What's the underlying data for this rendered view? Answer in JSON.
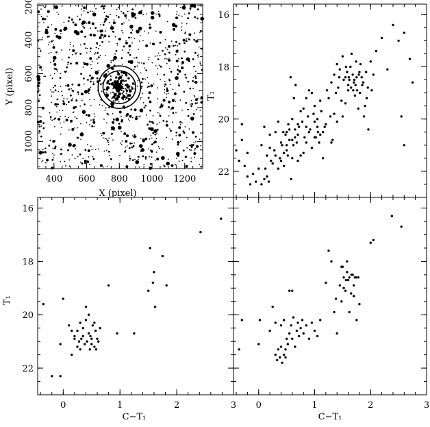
{
  "chart_data": [
    {
      "id": "finding-chart",
      "type": "scatter",
      "xlabel": "X (pixel)",
      "ylabel": "Y (pixel)",
      "xlim": [
        300,
        1310
      ],
      "ylim": [
        1160,
        190
      ],
      "x_ticks": [
        400,
        600,
        800,
        1000,
        1200
      ],
      "y_ticks": [
        200,
        400,
        600,
        800,
        1000
      ],
      "cluster_center": [
        800,
        680
      ],
      "circle_radii": [
        100,
        130
      ],
      "n_field_stars": 950,
      "n_cluster_stars": 140,
      "grid": false
    },
    {
      "id": "cmd-top-right",
      "type": "scatter",
      "xlabel": "",
      "ylabel": "T₁",
      "xlim": [
        -0.45,
        3.0
      ],
      "ylim": [
        23.0,
        15.6
      ],
      "x_ticks": [],
      "y_ticks": [
        16,
        18,
        20,
        22
      ],
      "points": [
        [
          -0.4,
          21.2
        ],
        [
          -0.35,
          21.6
        ],
        [
          -0.3,
          20.2
        ],
        [
          -0.2,
          22.2
        ],
        [
          -0.15,
          22.5
        ],
        [
          -0.1,
          22.1
        ],
        [
          -0.05,
          22.4
        ],
        [
          0.0,
          21.9
        ],
        [
          0.05,
          22.5
        ],
        [
          0.1,
          22.3
        ],
        [
          0.15,
          22.2
        ],
        [
          0.2,
          21.1
        ],
        [
          0.25,
          21.7
        ],
        [
          0.3,
          20.5
        ],
        [
          0.35,
          21.9
        ],
        [
          0.4,
          20.9
        ],
        [
          0.45,
          21.8
        ],
        [
          0.5,
          21.2
        ],
        [
          0.55,
          20.8
        ],
        [
          0.6,
          21.5
        ],
        [
          0.65,
          20.4
        ],
        [
          0.7,
          20.6
        ],
        [
          0.75,
          21.4
        ],
        [
          0.8,
          21.3
        ],
        [
          0.85,
          20.9
        ],
        [
          0.9,
          20.5
        ],
        [
          0.95,
          21.1
        ],
        [
          1.0,
          20.7
        ],
        [
          1.05,
          20.3
        ],
        [
          1.1,
          20.6
        ],
        [
          1.15,
          21.5
        ],
        [
          1.2,
          20.2
        ],
        [
          1.3,
          20.9
        ],
        [
          1.35,
          19.8
        ],
        [
          1.4,
          20.1
        ],
        [
          1.5,
          19.9
        ],
        [
          1.55,
          19.4
        ],
        [
          1.6,
          18.9
        ],
        [
          0.2,
          20.6
        ],
        [
          0.3,
          21.4
        ],
        [
          0.4,
          21.6
        ],
        [
          0.45,
          21.3
        ],
        [
          0.5,
          21.0
        ],
        [
          0.55,
          20.4
        ],
        [
          0.6,
          20.0
        ],
        [
          0.65,
          20.7
        ],
        [
          0.7,
          20.2
        ],
        [
          0.75,
          19.7
        ],
        [
          0.8,
          19.6
        ],
        [
          0.85,
          19.2
        ],
        [
          0.9,
          18.9
        ],
        [
          0.95,
          19.0
        ],
        [
          1.0,
          19.5
        ],
        [
          1.05,
          20.0
        ],
        [
          1.1,
          19.3
        ],
        [
          1.15,
          20.5
        ],
        [
          1.25,
          19.2
        ],
        [
          1.3,
          18.6
        ],
        [
          1.35,
          18.3
        ],
        [
          1.4,
          17.9
        ],
        [
          1.45,
          18.1
        ],
        [
          1.5,
          17.6
        ],
        [
          1.55,
          18.4
        ],
        [
          1.6,
          18.7
        ],
        [
          1.62,
          18.5
        ],
        [
          1.65,
          18.8
        ],
        [
          1.68,
          18.3
        ],
        [
          1.7,
          18.6
        ],
        [
          1.72,
          19.1
        ],
        [
          1.75,
          18.4
        ],
        [
          1.78,
          19.6
        ],
        [
          1.8,
          18.2
        ],
        [
          1.82,
          17.9
        ],
        [
          1.85,
          18.7
        ],
        [
          1.9,
          19.5
        ],
        [
          1.95,
          18.8
        ],
        [
          2.0,
          17.8
        ],
        [
          2.05,
          18.3
        ],
        [
          2.1,
          17.4
        ],
        [
          2.2,
          16.9
        ],
        [
          2.3,
          18.1
        ],
        [
          2.4,
          16.4
        ],
        [
          2.5,
          17.0
        ],
        [
          2.55,
          19.9
        ],
        [
          2.6,
          16.7
        ],
        [
          2.7,
          17.7
        ],
        [
          2.75,
          18.6
        ],
        [
          2.6,
          21.0
        ],
        [
          -0.3,
          20.8
        ],
        [
          0.1,
          20.3
        ],
        [
          0.15,
          21.4
        ],
        [
          0.35,
          20.1
        ],
        [
          0.5,
          20.5
        ],
        [
          0.58,
          22.3
        ],
        [
          0.62,
          21.0
        ],
        [
          0.68,
          20.9
        ],
        [
          0.72,
          20.3
        ],
        [
          0.78,
          20.1
        ],
        [
          0.82,
          20.7
        ],
        [
          0.88,
          19.9
        ],
        [
          0.92,
          20.4
        ],
        [
          0.98,
          19.8
        ],
        [
          1.08,
          20.9
        ],
        [
          1.12,
          19.7
        ],
        [
          1.18,
          20.3
        ],
        [
          1.22,
          18.9
        ],
        [
          1.28,
          19.9
        ],
        [
          1.32,
          20.8
        ],
        [
          1.38,
          19.0
        ],
        [
          1.42,
          18.8
        ],
        [
          1.48,
          19.3
        ],
        [
          1.52,
          18.5
        ],
        [
          1.58,
          18.2
        ],
        [
          1.64,
          18.0
        ],
        [
          1.66,
          17.5
        ],
        [
          1.69,
          18.9
        ],
        [
          1.74,
          17.8
        ],
        [
          1.76,
          18.9
        ],
        [
          1.84,
          18.4
        ],
        [
          1.88,
          19.9
        ],
        [
          1.92,
          18.2
        ],
        [
          1.96,
          20.4
        ],
        [
          2.02,
          18.9
        ],
        [
          -0.25,
          21.8
        ],
        [
          0.22,
          21.6
        ],
        [
          0.28,
          21.2
        ],
        [
          0.42,
          21.0
        ],
        [
          0.48,
          20.6
        ],
        [
          0.52,
          21.4
        ],
        [
          0.57,
          18.4
        ],
        [
          0.63,
          19.2
        ],
        [
          0.66,
          18.7
        ],
        [
          1.44,
          18.4
        ],
        [
          1.56,
          18.0
        ],
        [
          1.61,
          18.4
        ],
        [
          1.71,
          18.5
        ],
        [
          1.73,
          18.7
        ],
        [
          1.79,
          18.3
        ],
        [
          1.81,
          19.0
        ],
        [
          1.87,
          18.6
        ],
        [
          1.93,
          19.2
        ],
        [
          0.05,
          21.0
        ],
        [
          -0.2,
          21.3
        ],
        [
          0.12,
          21.9
        ],
        [
          0.18,
          22.4
        ],
        [
          0.38,
          21.5
        ],
        [
          0.44,
          20.5
        ],
        [
          0.53,
          20.2
        ],
        [
          0.6,
          20.8
        ],
        [
          0.7,
          21.6
        ],
        [
          0.85,
          20.3
        ],
        [
          1.0,
          20.1
        ],
        [
          1.02,
          20.7
        ],
        [
          1.06,
          20.5
        ]
      ]
    },
    {
      "id": "cmd-bottom-left",
      "type": "scatter",
      "xlabel": "C−T₁",
      "ylabel": "T₁",
      "xlim": [
        -0.45,
        3.0
      ],
      "ylim": [
        23.0,
        15.6
      ],
      "x_ticks": [
        0,
        1,
        2,
        3
      ],
      "y_ticks": [
        16,
        18,
        20,
        22
      ],
      "points": [
        [
          -0.35,
          19.6
        ],
        [
          -0.2,
          22.3
        ],
        [
          -0.05,
          22.3
        ],
        [
          -0.05,
          21.1
        ],
        [
          0.0,
          19.4
        ],
        [
          0.1,
          20.4
        ],
        [
          0.15,
          21.5
        ],
        [
          0.2,
          20.8
        ],
        [
          0.25,
          20.6
        ],
        [
          0.28,
          21.0
        ],
        [
          0.3,
          20.3
        ],
        [
          0.32,
          20.9
        ],
        [
          0.35,
          20.5
        ],
        [
          0.38,
          21.1
        ],
        [
          0.4,
          20.2
        ],
        [
          0.42,
          21.0
        ],
        [
          0.45,
          20.7
        ],
        [
          0.47,
          21.3
        ],
        [
          0.5,
          20.9
        ],
        [
          0.52,
          20.4
        ],
        [
          0.55,
          21.2
        ],
        [
          0.57,
          20.6
        ],
        [
          0.6,
          20.9
        ],
        [
          0.62,
          21.0
        ],
        [
          0.65,
          20.5
        ],
        [
          0.3,
          21.3
        ],
        [
          0.35,
          20.8
        ],
        [
          0.4,
          19.7
        ],
        [
          0.45,
          20.0
        ],
        [
          0.5,
          21.1
        ],
        [
          0.55,
          20.3
        ],
        [
          0.25,
          21.2
        ],
        [
          0.2,
          20.9
        ],
        [
          0.15,
          20.6
        ],
        [
          0.58,
          21.3
        ],
        [
          0.48,
          20.8
        ],
        [
          0.8,
          18.9
        ],
        [
          0.95,
          20.7
        ],
        [
          1.25,
          20.7
        ],
        [
          1.5,
          19.1
        ],
        [
          1.53,
          17.5
        ],
        [
          1.58,
          18.8
        ],
        [
          1.6,
          18.4
        ],
        [
          1.62,
          19.7
        ],
        [
          1.75,
          17.8
        ],
        [
          1.82,
          18.9
        ],
        [
          2.42,
          16.9
        ],
        [
          2.78,
          16.4
        ]
      ]
    },
    {
      "id": "cmd-bottom-right",
      "type": "scatter",
      "xlabel": "C−T₁",
      "ylabel": "",
      "xlim": [
        -0.45,
        3.0
      ],
      "ylim": [
        23.0,
        15.6
      ],
      "x_ticks": [
        0,
        1,
        2,
        3
      ],
      "y_ticks": [],
      "points": [
        [
          -0.35,
          21.3
        ],
        [
          -0.3,
          20.2
        ],
        [
          0.0,
          21.1
        ],
        [
          0.02,
          20.2
        ],
        [
          0.2,
          20.6
        ],
        [
          0.25,
          19.7
        ],
        [
          0.3,
          21.5
        ],
        [
          0.33,
          21.7
        ],
        [
          0.35,
          21.3
        ],
        [
          0.38,
          21.6
        ],
        [
          0.4,
          21.2
        ],
        [
          0.42,
          21.8
        ],
        [
          0.45,
          21.5
        ],
        [
          0.48,
          21.3
        ],
        [
          0.5,
          20.9
        ],
        [
          0.52,
          21.1
        ],
        [
          0.55,
          20.7
        ],
        [
          0.58,
          20.4
        ],
        [
          0.6,
          20.9
        ],
        [
          0.62,
          20.1
        ],
        [
          0.65,
          21.2
        ],
        [
          0.68,
          20.6
        ],
        [
          0.7,
          20.3
        ],
        [
          0.72,
          20.8
        ],
        [
          0.75,
          20.5
        ],
        [
          0.78,
          20.2
        ],
        [
          0.8,
          20.7
        ],
        [
          0.85,
          20.4
        ],
        [
          0.9,
          20.9
        ],
        [
          0.95,
          20.3
        ],
        [
          1.0,
          20.6
        ],
        [
          1.05,
          20.8
        ],
        [
          1.1,
          20.2
        ],
        [
          0.55,
          19.1
        ],
        [
          0.6,
          19.1
        ],
        [
          0.4,
          20.4
        ],
        [
          0.45,
          20.2
        ],
        [
          0.48,
          21.6
        ],
        [
          0.3,
          20.3
        ],
        [
          1.25,
          17.6
        ],
        [
          1.35,
          19.9
        ],
        [
          1.38,
          19.4
        ],
        [
          1.4,
          20.7
        ],
        [
          1.45,
          18.9
        ],
        [
          1.48,
          19.5
        ],
        [
          1.5,
          18.2
        ],
        [
          1.52,
          18.6
        ],
        [
          1.55,
          19.1
        ],
        [
          1.58,
          18.4
        ],
        [
          1.6,
          18.7
        ],
        [
          1.62,
          18.6
        ],
        [
          1.65,
          19.2
        ],
        [
          1.68,
          18.5
        ],
        [
          1.7,
          18.9
        ],
        [
          1.72,
          18.6
        ],
        [
          1.75,
          20.2
        ],
        [
          1.78,
          18.6
        ],
        [
          1.8,
          19.6
        ],
        [
          1.58,
          18.0
        ],
        [
          1.62,
          19.9
        ],
        [
          1.66,
          18.5
        ],
        [
          1.7,
          19.3
        ],
        [
          1.74,
          18.6
        ],
        [
          1.52,
          19.0
        ],
        [
          1.48,
          18.2
        ],
        [
          1.56,
          18.7
        ],
        [
          2.0,
          17.3
        ],
        [
          2.05,
          17.2
        ],
        [
          2.38,
          16.3
        ],
        [
          2.55,
          16.7
        ],
        [
          1.2,
          18.8
        ],
        [
          1.3,
          18.0
        ]
      ]
    }
  ]
}
